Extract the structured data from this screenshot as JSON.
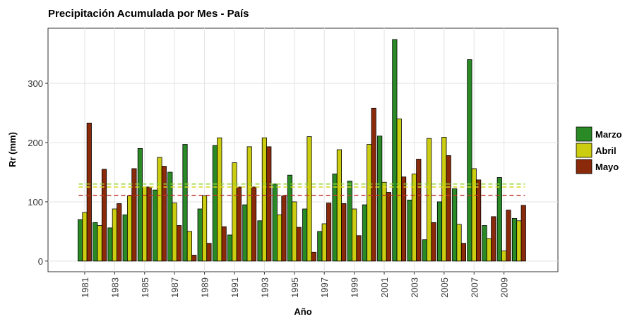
{
  "chart_data": {
    "type": "bar",
    "title": "Precipitación Acumulada por Mes - País",
    "x_label": "Año",
    "y_label": "Rr (mm)",
    "x": [
      1981,
      1982,
      1983,
      1984,
      1985,
      1986,
      1987,
      1988,
      1989,
      1990,
      1991,
      1992,
      1993,
      1994,
      1995,
      1996,
      1997,
      1998,
      1999,
      2000,
      2001,
      2002,
      2003,
      2004,
      2005,
      2006,
      2007,
      2008,
      2009,
      2010
    ],
    "series": [
      {
        "name": "Marzo",
        "color": "#2a8a25",
        "mean_color": "#8fd630",
        "mean": 130,
        "values": [
          70,
          65,
          56,
          78,
          190,
          120,
          150,
          197,
          88,
          195,
          44,
          95,
          68,
          130,
          145,
          88,
          50,
          147,
          135,
          95,
          211,
          374,
          103,
          36,
          100,
          122,
          340,
          60,
          141,
          72
        ]
      },
      {
        "name": "Abril",
        "color": "#cccc10",
        "mean_color": "#d9d920",
        "mean": 125,
        "values": [
          82,
          60,
          88,
          110,
          125,
          175,
          98,
          50,
          110,
          208,
          166,
          193,
          208,
          78,
          100,
          210,
          63,
          188,
          88,
          197,
          133,
          240,
          147,
          207,
          209,
          62,
          156,
          38,
          17,
          68
        ]
      },
      {
        "name": "Mayo",
        "color": "#8b2a0a",
        "mean_color": "#c0392b",
        "mean": 111,
        "values": [
          233,
          155,
          97,
          156,
          125,
          160,
          60,
          10,
          30,
          58,
          125,
          125,
          193,
          110,
          57,
          15,
          98,
          97,
          43,
          258,
          116,
          142,
          172,
          65,
          178,
          30,
          137,
          75,
          86,
          94
        ]
      }
    ],
    "xlim": [
      1978.55,
      2012.6
    ],
    "xticks": [
      1981,
      1983,
      1985,
      1987,
      1989,
      1991,
      1993,
      1995,
      1997,
      1999,
      2001,
      2003,
      2005,
      2007,
      2009
    ],
    "ylim": [
      -18,
      393
    ],
    "yticks": [
      0,
      100,
      200,
      300
    ],
    "grid": true,
    "legend": "right"
  }
}
